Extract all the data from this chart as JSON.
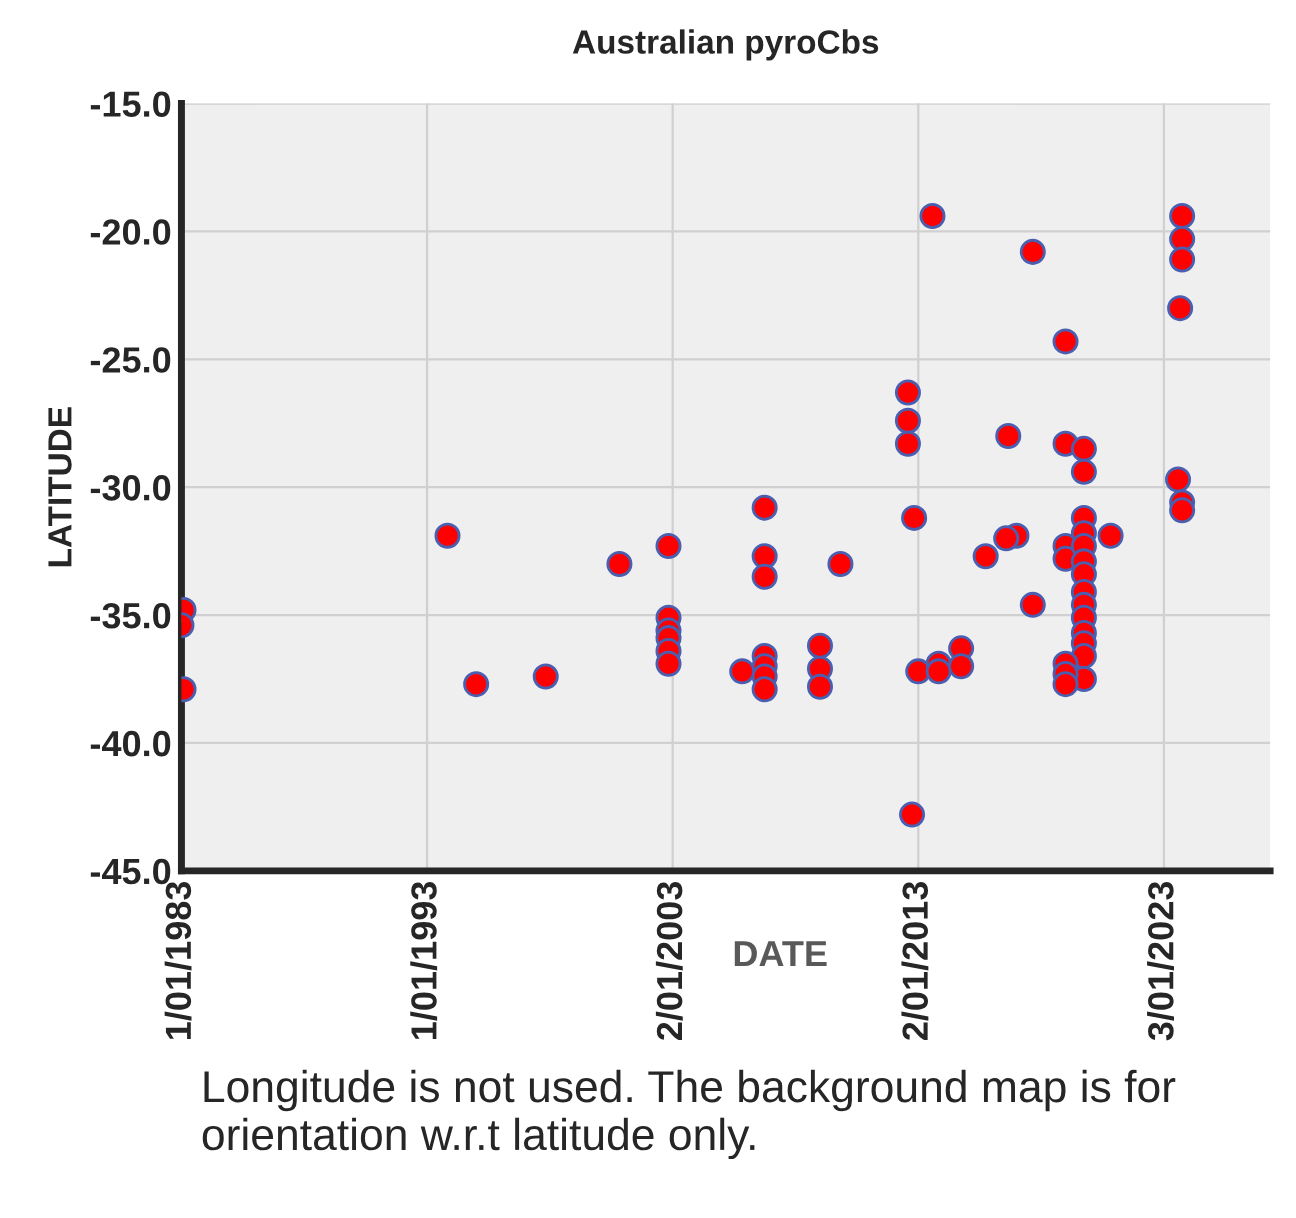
{
  "chart_data": {
    "type": "scatter",
    "title": "Australian pyroCbs",
    "xlabel": "DATE",
    "ylabel": "LATITUDE",
    "annotations": [
      "Longitude is not used. The background map is for orientation w.r.t latitude only."
    ],
    "series": [
      {
        "color": "#ff0000",
        "x": [
          "1983-02",
          "1983-01",
          "1983-02",
          "1993-11",
          "1995-01",
          "1997-11",
          "2000-11",
          "2002-11",
          "2002-11",
          "2002-11",
          "2002-11",
          "2002-11",
          "2002-11",
          "2005-11",
          "2006-10",
          "2006-10",
          "2006-10",
          "2006-10",
          "2006-10",
          "2006-10",
          "2006-10",
          "2009-01",
          "2009-01",
          "2009-01",
          "2009-11",
          "2012-08",
          "2012-08",
          "2012-08",
          "2012-11",
          "2013-01",
          "2012-10",
          "2013-08",
          "2017-09",
          "2019-01",
          "2023-10",
          "2023-10",
          "2023-10",
          "2023-09",
          "2016-09",
          "2019-01",
          "2019-10",
          "2019-10",
          "2023-08",
          "2023-10",
          "2023-10",
          "2017-01",
          "2016-08",
          "2015-10",
          "2020-11",
          "2019-01",
          "2019-01",
          "2019-10",
          "2019-10",
          "2019-10",
          "2019-10",
          "2019-10",
          "2019-10",
          "2019-10",
          "2019-10",
          "2019-10",
          "2019-10",
          "2019-10",
          "2019-10",
          "2017-09",
          "2013-11",
          "2013-11",
          "2014-10",
          "2014-10",
          "2019-01",
          "2019-01",
          "2019-01"
        ],
        "values": [
          -34.8,
          -35.4,
          -37.9,
          -31.9,
          -37.7,
          -37.4,
          -33.0,
          -32.3,
          -35.1,
          -35.6,
          -35.9,
          -36.4,
          -36.9,
          -37.2,
          -30.8,
          -32.7,
          -33.5,
          -36.6,
          -37.0,
          -37.4,
          -37.9,
          -36.2,
          -37.1,
          -37.8,
          -33.0,
          -26.3,
          -27.4,
          -28.3,
          -31.2,
          -37.2,
          -42.8,
          -19.4,
          -20.8,
          -24.3,
          -19.4,
          -20.3,
          -21.1,
          -23.0,
          -28.0,
          -28.3,
          -28.5,
          -29.4,
          -29.7,
          -30.6,
          -30.9,
          -31.9,
          -32.0,
          -32.7,
          -31.9,
          -32.3,
          -32.8,
          -31.2,
          -31.8,
          -32.3,
          -32.9,
          -33.4,
          -34.1,
          -34.6,
          -35.1,
          -35.7,
          -36.1,
          -36.6,
          -37.5,
          -34.6,
          -36.9,
          -37.2,
          -36.3,
          -37.0,
          -36.9,
          -37.3,
          -37.7
        ]
      }
    ],
    "xlim": [
      "1983-01-01",
      "2027-05-01"
    ],
    "xticks": [
      {
        "value": "1983-01-01",
        "label": "1/01/1983"
      },
      {
        "value": "1993-01-01",
        "label": "1/01/1993"
      },
      {
        "value": "2003-01-02",
        "label": "2/01/2003"
      },
      {
        "value": "2013-01-02",
        "label": "2/01/2013"
      },
      {
        "value": "2023-01-03",
        "label": "3/01/2023"
      }
    ],
    "ylim": [
      -45,
      -15
    ],
    "yticks": [
      {
        "value": -45,
        "label": "-45.0"
      },
      {
        "value": -40,
        "label": "-40.0"
      },
      {
        "value": -35,
        "label": "-35.0"
      },
      {
        "value": -30,
        "label": "-30.0"
      },
      {
        "value": -25,
        "label": "-25.0"
      },
      {
        "value": -20,
        "label": "-20.0"
      },
      {
        "value": -15,
        "label": "-15.0"
      }
    ],
    "grid": true,
    "marker": "circle"
  }
}
